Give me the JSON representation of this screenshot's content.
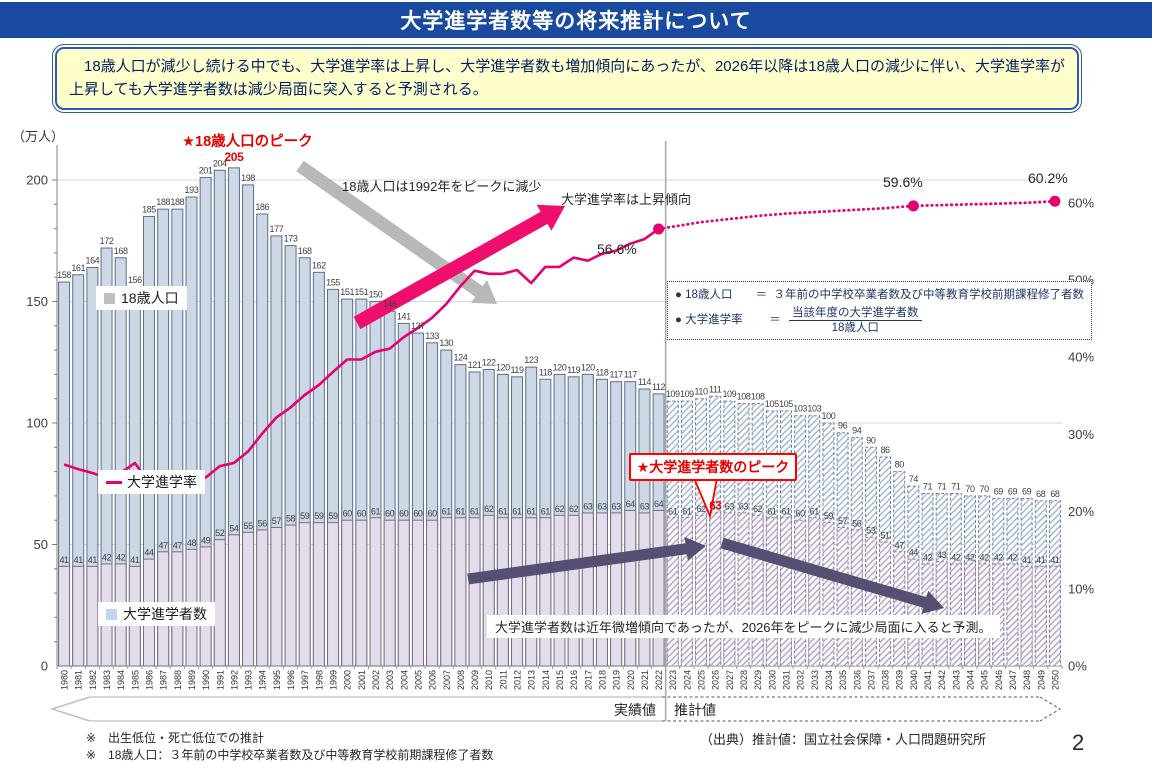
{
  "title": "大学進学者数等の将来推計について",
  "summary": "　18歳人口が減少し続ける中でも、大学進学率は上昇し、大学進学者数も増加傾向にあったが、2026年以降は18歳人口の減少に伴い、大学進学率が上昇しても大学進学者数は減少局面に突入すると予測される。",
  "unit_label": "（万人）",
  "legend": {
    "population": "18歳人口",
    "rate": "大学進学率",
    "entrants": "大学進学者数"
  },
  "annotations": {
    "peak_pop_title": "★18歳人口のピーク",
    "peak_pop_value": "205",
    "pop_decline": "18歳人口は1992年をピークに減少",
    "rate_rising": "大学進学率は上昇傾向",
    "rate_2022": "56.6%",
    "rate_2040": "59.6%",
    "rate_2050": "60.2%",
    "peak_ent_title": "★大学進学者数のピーク",
    "peak_ent_value": "63",
    "ent_forecast": "大学進学者数は近年微増傾向であったが、2026年をピークに減少局面に入ると予測。"
  },
  "definitions": {
    "r1_term": "18歳人口",
    "r1_eq": "＝",
    "r1_def": "３年前の中学校卒業者数及び中等教育学校前期課程修了者数",
    "r2_term": "大学進学率",
    "r2_eq": "＝",
    "r2_num": "当該年度の大学進学者数",
    "r2_den": "18歳人口"
  },
  "bottom": {
    "actual_label": "実績値",
    "projected_label": "推計値",
    "source": "（出典）推計値：国立社会保障・人口問題研究所",
    "note1": "※　出生低位・死亡低位での推計",
    "note2": "※　18歳人口：３年前の中学校卒業者数及び中等教育学校前期課程修了者数",
    "page_number": "2"
  },
  "colors": {
    "title_bg": "#1a4aa0",
    "note_bg": "#ffffcc",
    "accent_pink": "#e50171",
    "bar_population": "#ccd8e6",
    "bar_entrants": "#e4dcea",
    "red": "#e60000",
    "purple_arrow": "#564e73",
    "gray_arrow": "#b8b8b8"
  },
  "chart_data": {
    "type": "bar+line",
    "title": "大学進学者数等の将来推計",
    "actual_through": 2022,
    "projection_from": 2023,
    "years": [
      1980,
      1981,
      1982,
      1983,
      1984,
      1985,
      1986,
      1987,
      1988,
      1989,
      1990,
      1991,
      1992,
      1993,
      1994,
      1995,
      1996,
      1997,
      1998,
      1999,
      2000,
      2001,
      2002,
      2003,
      2004,
      2005,
      2006,
      2007,
      2008,
      2009,
      2010,
      2011,
      2012,
      2013,
      2014,
      2015,
      2016,
      2017,
      2018,
      2019,
      2020,
      2021,
      2022,
      2023,
      2024,
      2025,
      2026,
      2027,
      2028,
      2029,
      2030,
      2031,
      2032,
      2033,
      2034,
      2035,
      2036,
      2037,
      2038,
      2039,
      2040,
      2041,
      2042,
      2043,
      2044,
      2045,
      2046,
      2047,
      2048,
      2049,
      2050
    ],
    "series": [
      {
        "name": "18歳人口",
        "type": "bar",
        "unit": "万人",
        "values": [
          158,
          161,
          164,
          172,
          168,
          156,
          185,
          188,
          188,
          193,
          201,
          204,
          205,
          198,
          186,
          177,
          173,
          168,
          162,
          155,
          151,
          151,
          150,
          146,
          141,
          137,
          133,
          130,
          124,
          121,
          122,
          120,
          119,
          123,
          118,
          120,
          119,
          120,
          118,
          117,
          117,
          114,
          112,
          109,
          109,
          110,
          111,
          109,
          108,
          108,
          105,
          105,
          103,
          103,
          100,
          96,
          94,
          90,
          86,
          80,
          74,
          71,
          71,
          71,
          70,
          70,
          69,
          69,
          69,
          68,
          68
        ]
      },
      {
        "name": "大学進学者数",
        "type": "bar",
        "unit": "万人",
        "values": [
          41,
          41,
          41,
          42,
          42,
          41,
          44,
          47,
          47,
          48,
          49,
          52,
          54,
          55,
          56,
          57,
          58,
          59,
          59,
          59,
          60,
          60,
          61,
          60,
          60,
          60,
          60,
          61,
          61,
          61,
          62,
          61,
          61,
          61,
          61,
          62,
          62,
          63,
          63,
          63,
          64,
          63,
          64,
          61,
          61,
          62,
          63,
          63,
          63,
          62,
          61,
          61,
          60,
          61,
          59,
          57,
          56,
          53,
          51,
          47,
          44,
          42,
          43,
          42,
          42,
          42,
          42,
          42,
          41,
          41,
          41
        ]
      },
      {
        "name": "大学進学率",
        "type": "line",
        "unit": "%",
        "axis": "right",
        "values": [
          26.1,
          25.5,
          25.0,
          24.4,
          25.0,
          26.3,
          23.8,
          25.0,
          25.0,
          24.9,
          24.4,
          25.9,
          26.3,
          27.8,
          30.1,
          32.2,
          33.5,
          35.1,
          36.4,
          38.1,
          39.7,
          39.7,
          40.7,
          41.1,
          42.6,
          43.8,
          45.1,
          46.9,
          49.2,
          51.2,
          50.8,
          50.8,
          51.3,
          49.6,
          51.7,
          51.7,
          52.9,
          52.5,
          53.4,
          53.8,
          54.7,
          55.3,
          56.6,
          56.9,
          57.2,
          57.5,
          57.7,
          57.9,
          58.1,
          58.3,
          58.45,
          58.6,
          58.7,
          58.8,
          58.9,
          59.0,
          59.1,
          59.2,
          59.3,
          59.45,
          59.6,
          59.65,
          59.7,
          59.75,
          59.8,
          59.85,
          59.9,
          59.95,
          60.0,
          60.1,
          60.2
        ],
        "labeled_points": [
          {
            "year": 2022,
            "label": "56.6%"
          },
          {
            "year": 2040,
            "label": "59.6%"
          },
          {
            "year": 2050,
            "label": "60.2%"
          }
        ]
      }
    ],
    "left_axis": {
      "title": "（万人）",
      "ticks": [
        0,
        50,
        100,
        150,
        200
      ]
    },
    "right_axis": {
      "ticks_pct": [
        0,
        10,
        20,
        30,
        40,
        50,
        60
      ]
    },
    "highlights": {
      "pop_peak_year": 1992,
      "pop_peak_value": 205,
      "ent_peak_year": 2026,
      "ent_peak_value": 63
    },
    "grid": "horizontal at 50,100,150,200 万人"
  }
}
